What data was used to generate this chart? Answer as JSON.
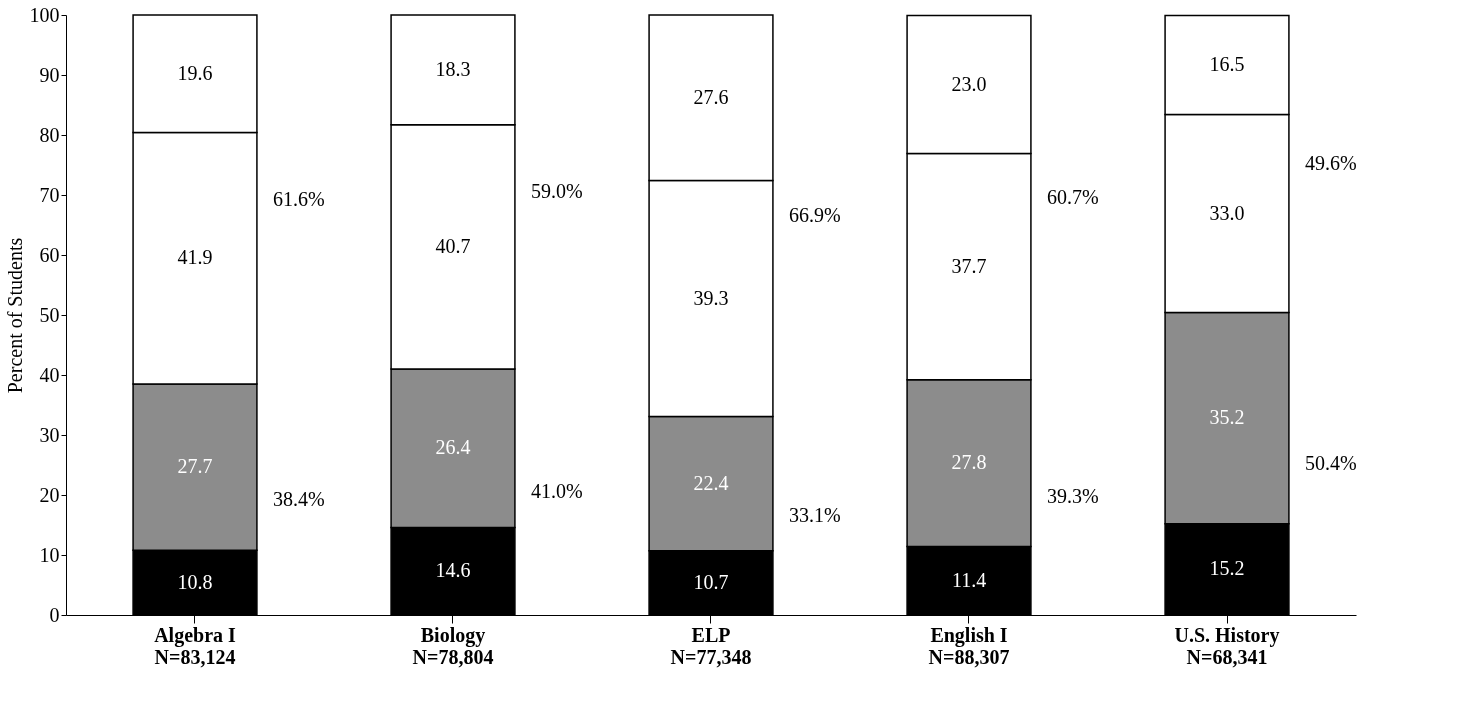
{
  "chart_data": {
    "type": "bar",
    "stacked": true,
    "ylabel": "Percent of Students",
    "categories": [
      "Algebra I\nN=83,124",
      "Biology\nN=78,804",
      "ELP\nN=77,348",
      "English I\nN=88,307",
      "U.S. History\nN=68,341"
    ],
    "series": [
      {
        "color": "#000000",
        "values": [
          10.8,
          14.6,
          10.7,
          11.4,
          15.2
        ],
        "value_labels": [
          "10.8",
          "14.6",
          "10.7",
          "11.4",
          "15.2"
        ]
      },
      {
        "color": "#8c8c8c",
        "values": [
          27.7,
          26.4,
          22.4,
          27.8,
          35.2
        ],
        "value_labels": [
          "27.7",
          "26.4",
          "22.4",
          "27.8",
          "35.2"
        ]
      },
      {
        "color": "#ffffff",
        "values": [
          41.9,
          40.7,
          39.3,
          37.7,
          33.0
        ],
        "value_labels": [
          "41.9",
          "40.7",
          "39.3",
          "37.7",
          "33.0"
        ]
      },
      {
        "color": "#ffffff",
        "values": [
          19.6,
          18.3,
          27.6,
          23.0,
          16.5
        ],
        "value_labels": [
          "19.6",
          "18.3",
          "27.6",
          "23.0",
          "16.5"
        ]
      }
    ],
    "ylim": [
      0,
      100
    ],
    "yticks": [
      0,
      10,
      20,
      30,
      40,
      50,
      60,
      70,
      80,
      90,
      100
    ],
    "grid": false,
    "legend": false,
    "annotations": [
      "61.6%",
      "38.4%",
      "59.0%",
      "41.0%",
      "66.9%",
      "33.1%",
      "60.7%",
      "39.3%",
      "49.6%",
      "50.4%"
    ]
  }
}
